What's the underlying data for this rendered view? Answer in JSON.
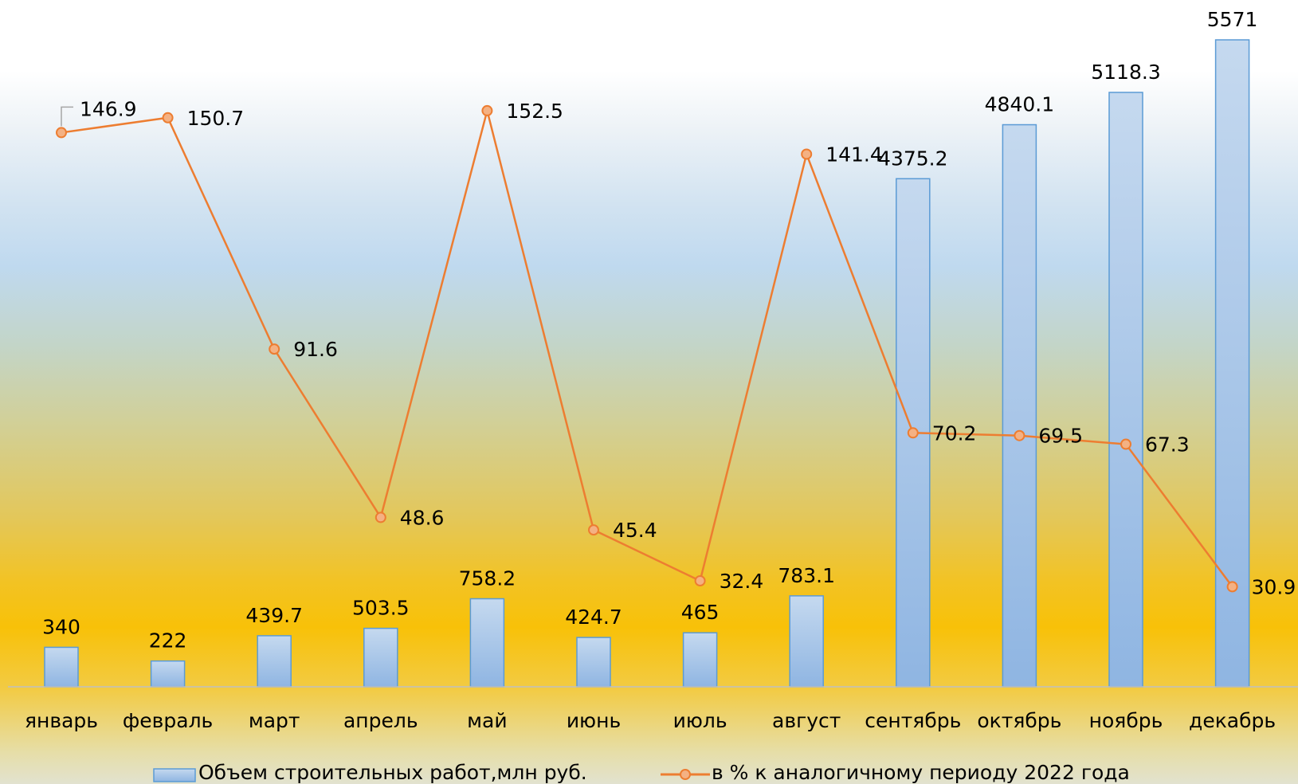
{
  "chart_data": {
    "type": "bar",
    "categories": [
      "январь",
      "февраль",
      "март",
      "апрель",
      "май",
      "июнь",
      "июль",
      "август",
      "сентябрь",
      "октябрь",
      "ноябрь",
      "декабрь"
    ],
    "series": [
      {
        "name": "Объем строительных работ,млн руб.",
        "type": "bar",
        "values": [
          340,
          222,
          439.7,
          503.5,
          758.2,
          424.7,
          465,
          783.1,
          4375.2,
          4840.1,
          5118.3,
          5571
        ],
        "labels": [
          "340",
          "222",
          "439.7",
          "503.5",
          "758.2",
          "424.7",
          "465",
          "783.1",
          "4375.2",
          "4840.1",
          "5118.3",
          "5571"
        ],
        "color": "#9dc3e6"
      },
      {
        "name": "в % к аналогичному периоду 2022 года",
        "type": "line",
        "values": [
          146.9,
          150.7,
          91.6,
          48.6,
          152.5,
          45.4,
          32.4,
          141.4,
          70.2,
          69.5,
          67.3,
          30.9
        ],
        "labels": [
          "146.9",
          "150.7",
          "91.6",
          "48.6",
          "152.5",
          "45.4",
          "32.4",
          "141.4",
          "70.2",
          "69.5",
          "67.3",
          "30.9"
        ],
        "color": "#ed7d31"
      }
    ],
    "legend_position": "bottom",
    "grid": false
  }
}
